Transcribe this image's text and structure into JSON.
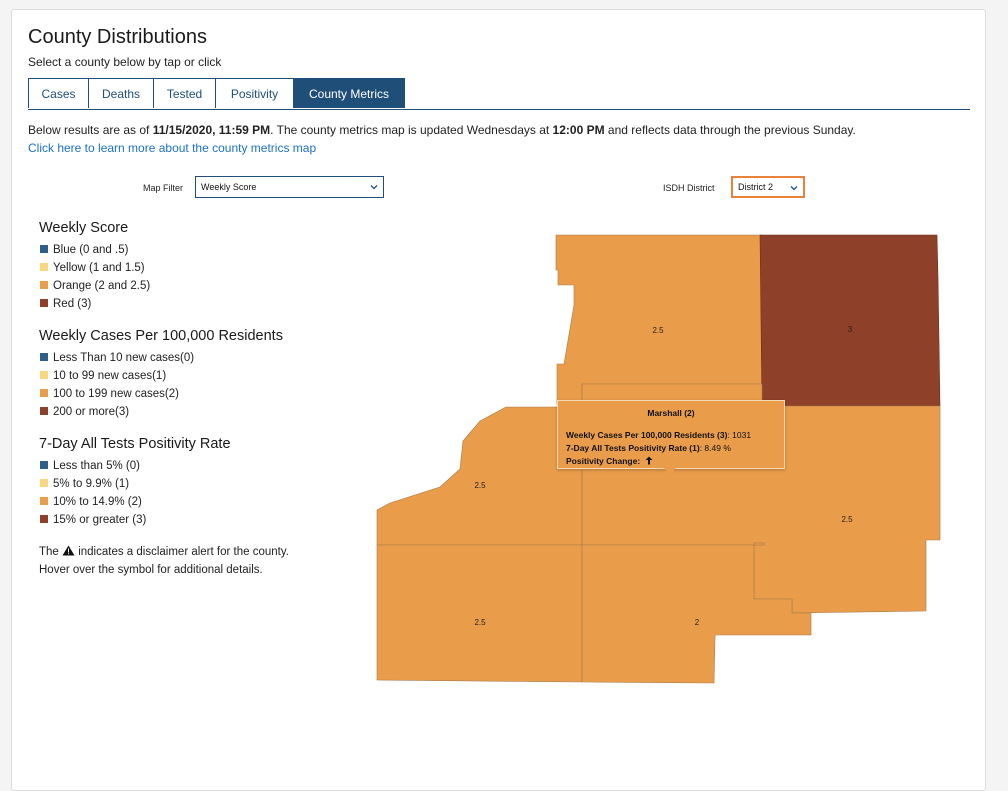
{
  "page": {
    "title": "County Distributions",
    "subtitle": "Select a county below by tap or click"
  },
  "tabs": [
    {
      "label": "Cases",
      "active": false
    },
    {
      "label": "Deaths",
      "active": false
    },
    {
      "label": "Tested",
      "active": false
    },
    {
      "label": "Positivity",
      "active": false
    },
    {
      "label": "County Metrics",
      "active": true
    }
  ],
  "info": {
    "prefix": "Below results are as of ",
    "as_of": "11/15/2020, 11:59 PM",
    "middle": ". The county metrics map is updated Wednesdays at ",
    "update_time": "12:00 PM",
    "suffix": " and reflects data through the previous Sunday.",
    "link_text": "Click here to learn more about the county metrics map"
  },
  "filters": {
    "map_filter_label": "Map Filter",
    "map_filter_value": "Weekly Score",
    "district_label": "ISDH District",
    "district_value": "District 2"
  },
  "colors": {
    "blue": "#2e5f8a",
    "yellow": "#f9d77e",
    "orange": "#e99d4b",
    "red": "#8f4029",
    "accent": "#1f4e79",
    "link": "#1a73c6"
  },
  "legend": {
    "weekly_score": {
      "heading": "Weekly Score",
      "items": [
        "Blue (0 and .5)",
        "Yellow (1 and 1.5)",
        "Orange (2 and 2.5)",
        "Red (3)"
      ]
    },
    "weekly_cases": {
      "heading": "Weekly Cases Per 100,000 Residents",
      "items": [
        "Less Than 10 new cases(0)",
        "10 to 99 new cases(1)",
        "100 to 199 new cases(2)",
        "200 or more(3)"
      ]
    },
    "positivity": {
      "heading": "7-Day All Tests Positivity Rate",
      "items": [
        "Less than 5% (0)",
        "5% to 9.9% (1)",
        "10% to 14.9% (2)",
        "15% or greater (3)"
      ]
    },
    "disclaimer_before": "The ",
    "disclaimer_after": " indicates a disclaimer alert for the county. Hover over the symbol for additional details.",
    "disclaimer_icon": "warning-triangle-icon"
  },
  "map": {
    "counties": [
      {
        "score": "2.5",
        "color": "orange"
      },
      {
        "score": "3",
        "color": "red"
      },
      {
        "score": "2.5",
        "color": "orange"
      },
      {
        "score": "2.5",
        "color": "orange"
      },
      {
        "score": "2.5",
        "color": "orange"
      },
      {
        "score": "2",
        "color": "orange"
      }
    ]
  },
  "tooltip": {
    "county": "Marshall (2)",
    "cases_label": "Weekly Cases Per 100,000 Residents (3)",
    "cases_value": ": 1031",
    "positivity_label": "7-Day All Tests Positivity Rate (1)",
    "positivity_value": ": 8.49 %",
    "change_label": "Positivity Change:",
    "change_icon": "arrow-up-icon",
    "change_symbol": "🡑"
  }
}
